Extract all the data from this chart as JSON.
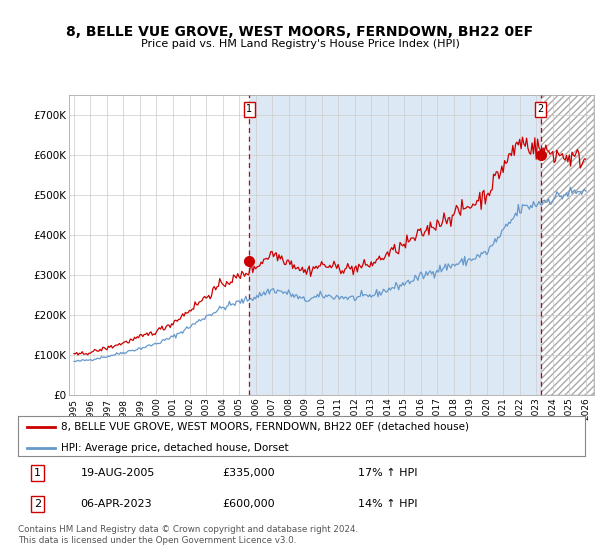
{
  "title": "8, BELLE VUE GROVE, WEST MOORS, FERNDOWN, BH22 0EF",
  "subtitle": "Price paid vs. HM Land Registry's House Price Index (HPI)",
  "background_color": "#ffffff",
  "plot_bg_color": "#ffffff",
  "grid_color": "#cccccc",
  "ylim": [
    0,
    750000
  ],
  "yticks": [
    0,
    100000,
    200000,
    300000,
    400000,
    500000,
    600000,
    700000
  ],
  "ytick_labels": [
    "£0",
    "£100K",
    "£200K",
    "£300K",
    "£400K",
    "£500K",
    "£600K",
    "£700K"
  ],
  "legend_line1": "8, BELLE VUE GROVE, WEST MOORS, FERNDOWN, BH22 0EF (detached house)",
  "legend_line2": "HPI: Average price, detached house, Dorset",
  "table_rows": [
    [
      "1",
      "19-AUG-2005",
      "£335,000",
      "17% ↑ HPI"
    ],
    [
      "2",
      "06-APR-2023",
      "£600,000",
      "14% ↑ HPI"
    ]
  ],
  "footnote": "Contains HM Land Registry data © Crown copyright and database right 2024.\nThis data is licensed under the Open Government Licence v3.0.",
  "red_color": "#cc0000",
  "blue_color": "#6699cc",
  "blue_fill_color": "#dde8f5",
  "vline1_x": 2005.63,
  "vline2_x": 2023.27,
  "marker1_x": 2005.63,
  "marker1_y": 335000,
  "marker2_x": 2023.27,
  "marker2_y": 600000,
  "xlim_left": 1994.7,
  "xlim_right": 2026.5,
  "xtick_years": [
    1995,
    1996,
    1997,
    1998,
    1999,
    2000,
    2001,
    2002,
    2003,
    2004,
    2005,
    2006,
    2007,
    2008,
    2009,
    2010,
    2011,
    2012,
    2013,
    2014,
    2015,
    2016,
    2017,
    2018,
    2019,
    2020,
    2021,
    2022,
    2023,
    2024,
    2025,
    2026
  ]
}
